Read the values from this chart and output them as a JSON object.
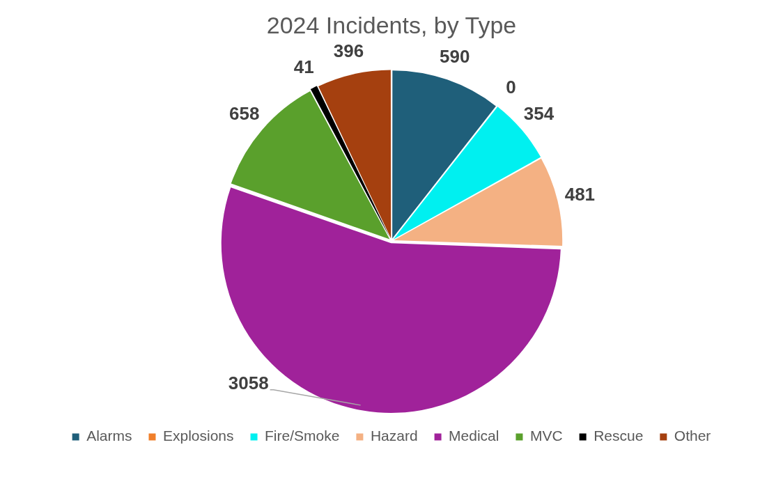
{
  "chart_data": {
    "type": "pie",
    "title": "2024 Incidents, by Type",
    "categories": [
      "Alarms",
      "Explosions",
      "Fire/Smoke",
      "Hazard",
      "Medical",
      "MVC",
      "Rescue",
      "Other"
    ],
    "values": [
      590,
      0,
      354,
      481,
      3058,
      658,
      41,
      396
    ],
    "colors": [
      "#1f5f7a",
      "#f07f2a",
      "#00f0f0",
      "#f4b183",
      "#a0229a",
      "#5aa02c",
      "#000000",
      "#a5400f"
    ],
    "value_labels": [
      "590",
      "0",
      "354",
      "481",
      "3058",
      "658",
      "41",
      "396"
    ],
    "legend": "bottom"
  }
}
